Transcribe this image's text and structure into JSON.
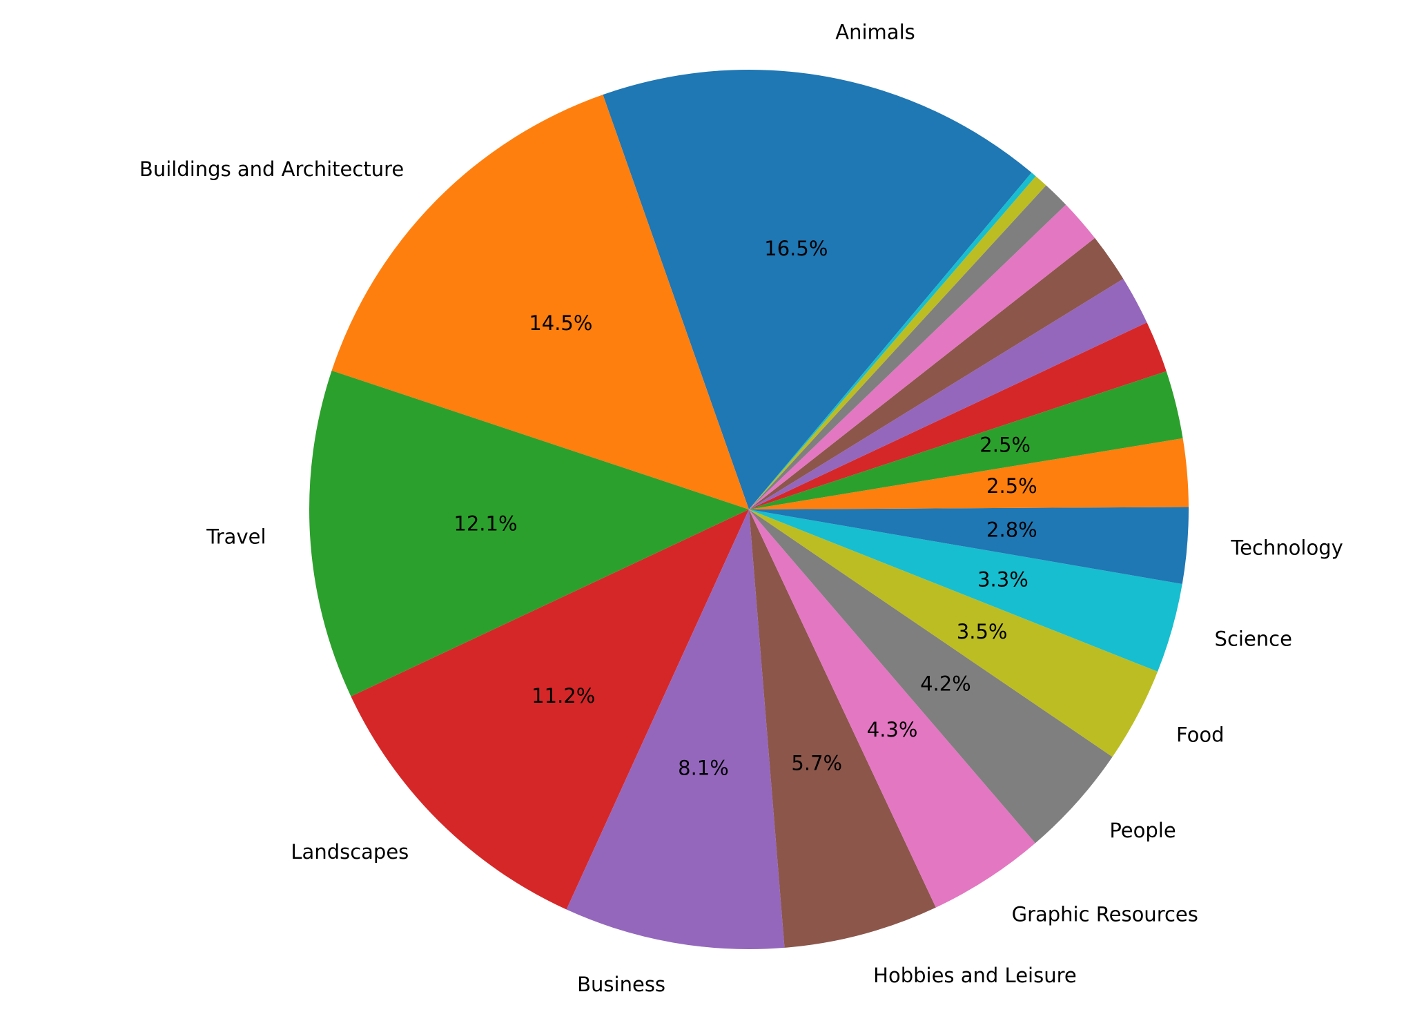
{
  "chart_data": {
    "type": "pie",
    "categories": [
      "Animals",
      "Buildings and Architecture",
      "Travel",
      "Landscapes",
      "Business",
      "Hobbies and Leisure",
      "Graphic Resources",
      "People",
      "Food",
      "Science",
      "Technology",
      null,
      null,
      null,
      null,
      null,
      null,
      null,
      null,
      null
    ],
    "values": [
      16.5,
      14.5,
      12.1,
      11.2,
      8.1,
      5.7,
      4.3,
      4.2,
      3.5,
      3.3,
      2.8,
      2.5,
      2.5,
      1.9,
      1.8,
      1.8,
      1.6,
      1.0,
      0.5,
      0.2
    ],
    "value_labels": [
      "16.5%",
      "14.5%",
      "12.1%",
      "11.2%",
      "8.1%",
      "5.7%",
      "4.3%",
      "4.2%",
      "3.5%",
      "3.3%",
      "2.8%",
      "2.5%",
      "2.5%",
      null,
      null,
      null,
      null,
      null,
      null,
      null
    ],
    "colors": [
      "#1f77b4",
      "#ff7f0e",
      "#2ca02c",
      "#d62728",
      "#9467bd",
      "#8c564b",
      "#e377c2",
      "#7f7f7f",
      "#bcbd22",
      "#17becf",
      "#1f77b4",
      "#ff7f0e",
      "#2ca02c",
      "#d62728",
      "#9467bd",
      "#8c564b",
      "#e377c2",
      "#7f7f7f",
      "#bcbd22",
      "#17becf"
    ]
  }
}
